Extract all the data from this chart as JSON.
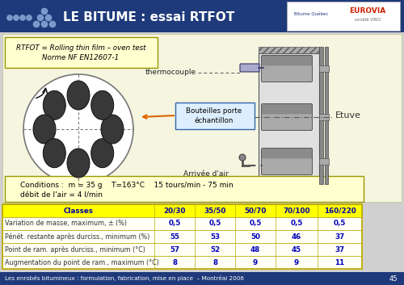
{
  "title": "LE BITUME : essai RTFOT",
  "header_bg": "#1e3a7a",
  "header_text_color": "#ffffff",
  "slide_bg": "#d0d0d0",
  "content_bg": "#f5f5e0",
  "box_text1": "RTFOT = Rolling thin film – oven test",
  "box_text2": "Norme NF EN12607-1",
  "conditions_text1": "Conditions :  m = 35 g    T=163°C    15 tours/min - 75 min",
  "conditions_text2": "débit de l'air = 4 l/min",
  "thermocouple_label": "thermocouple",
  "bouteilles_label": "Bouteilles porte\néchantillon",
  "arrivee_label": "Arrivée d'air",
  "etuve_label": "Etuve",
  "footer_text": "Les enrobés bitumineux : formulation, fabrication, mise en place  – Montréal 2006",
  "footer_page": "45",
  "footer_bg": "#1e3a7a",
  "footer_text_color": "#ffffff",
  "table_header_bg": "#ffff00",
  "table_header_text": "#0000aa",
  "table_row_bg": "#fffff5",
  "table_border": "#bbaa00",
  "table_value_color": "#0000bb",
  "table_label_color": "#333333",
  "classes": [
    "Classes",
    "20/30",
    "35/50",
    "50/70",
    "70/100",
    "160/220"
  ],
  "rows": [
    [
      "Variation de masse, maximum, ± (%)",
      "0,5",
      "0,5",
      "0,5",
      "0,5",
      "0,5"
    ],
    [
      "Pénét. restante après durciss., minimum (%)",
      "55",
      "53",
      "50",
      "46",
      "37"
    ],
    [
      "Point de ram. après durciss., minimum (°C)",
      "57",
      "52",
      "48",
      "45",
      "37"
    ],
    [
      "Augmentation du point de ram., maximum (°C)",
      "8",
      "8",
      "9",
      "9",
      "11"
    ]
  ]
}
